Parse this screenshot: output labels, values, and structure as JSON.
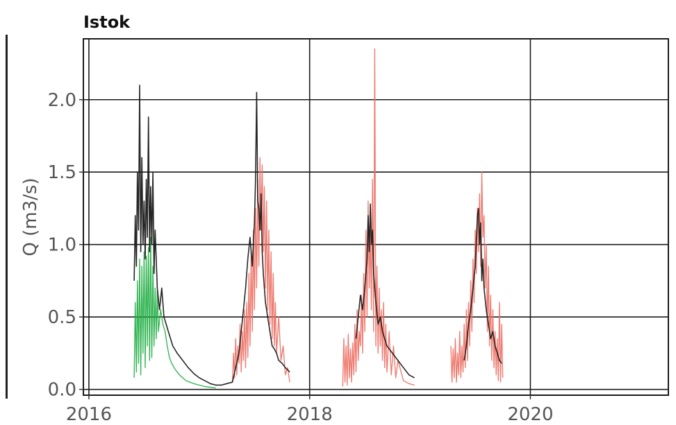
{
  "chart_data": {
    "type": "line",
    "title": "Istok",
    "xlabel": "",
    "ylabel": "Q (m3/s)",
    "xlim": [
      2015.95,
      2021.25
    ],
    "ylim": [
      -0.04,
      2.42
    ],
    "xticks": [
      2016,
      2018,
      2020
    ],
    "yticks": [
      0.0,
      0.5,
      1.0,
      1.5,
      2.0
    ],
    "ytick_labels": [
      "0.0",
      "0.5",
      "1.0",
      "1.5",
      "2.0"
    ],
    "grid": true,
    "colors": {
      "observed": "#1a1a1a",
      "green": "#1fae43",
      "red": "#ec6f63",
      "grid": "#1a1a1a",
      "frame": "#1a1a1a"
    },
    "series": [
      {
        "color_key": "green",
        "x": [
          2016.41,
          2016.42,
          2016.43,
          2016.44,
          2016.45,
          2016.46,
          2016.47,
          2016.48,
          2016.49,
          2016.5,
          2016.51,
          2016.52,
          2016.53,
          2016.54,
          2016.55,
          2016.56,
          2016.57,
          2016.58,
          2016.59,
          2016.6,
          2016.61,
          2016.62,
          2016.63,
          2016.65,
          2016.67,
          2016.69,
          2016.71,
          2016.73,
          2016.75,
          2016.78,
          2016.82,
          2016.88,
          2016.95,
          2017.05,
          2017.15
        ],
        "y": [
          0.08,
          0.6,
          0.12,
          0.75,
          0.18,
          0.9,
          0.1,
          0.85,
          0.25,
          0.95,
          0.15,
          0.92,
          0.3,
          0.98,
          0.2,
          1.05,
          0.22,
          0.85,
          0.3,
          0.7,
          0.35,
          0.68,
          0.4,
          0.55,
          0.45,
          0.4,
          0.3,
          0.22,
          0.18,
          0.14,
          0.1,
          0.06,
          0.04,
          0.02,
          0.01
        ]
      },
      {
        "color_key": "red",
        "x": [
          2017.3,
          2017.31,
          2017.32,
          2017.33,
          2017.34,
          2017.35,
          2017.36,
          2017.37,
          2017.38,
          2017.39,
          2017.4,
          2017.41,
          2017.42,
          2017.43,
          2017.44,
          2017.45,
          2017.46,
          2017.47,
          2017.48,
          2017.49,
          2017.5,
          2017.51,
          2017.52,
          2017.53,
          2017.54,
          2017.55,
          2017.56,
          2017.57,
          2017.58,
          2017.59,
          2017.6,
          2017.61,
          2017.62,
          2017.63,
          2017.64,
          2017.65,
          2017.66,
          2017.67,
          2017.68,
          2017.69,
          2017.7,
          2017.72,
          2017.74,
          2017.76,
          2017.78,
          2017.8,
          2017.82
        ],
        "y": [
          0.05,
          0.25,
          0.08,
          0.35,
          0.1,
          0.3,
          0.18,
          0.45,
          0.12,
          0.4,
          0.2,
          0.55,
          0.15,
          0.6,
          0.22,
          0.8,
          0.3,
          0.95,
          0.4,
          1.1,
          0.55,
          1.25,
          0.7,
          1.45,
          0.85,
          1.6,
          1.1,
          1.55,
          0.95,
          1.4,
          0.7,
          1.3,
          0.55,
          1.1,
          0.45,
          0.95,
          0.35,
          0.8,
          0.3,
          0.6,
          0.25,
          0.5,
          0.2,
          0.3,
          0.1,
          0.15,
          0.05
        ]
      },
      {
        "color_key": "red",
        "x": [
          2018.3,
          2018.31,
          2018.32,
          2018.33,
          2018.34,
          2018.35,
          2018.36,
          2018.37,
          2018.38,
          2018.39,
          2018.4,
          2018.41,
          2018.42,
          2018.43,
          2018.44,
          2018.45,
          2018.46,
          2018.47,
          2018.48,
          2018.49,
          2018.5,
          2018.51,
          2018.52,
          2018.53,
          2018.54,
          2018.55,
          2018.56,
          2018.57,
          2018.58,
          2018.59,
          2018.6,
          2018.61,
          2018.62,
          2018.63,
          2018.64,
          2018.65,
          2018.66,
          2018.67,
          2018.68,
          2018.69,
          2018.7,
          2018.72,
          2018.74,
          2018.76,
          2018.78,
          2018.8,
          2018.85,
          2018.9,
          2018.95
        ],
        "y": [
          0.02,
          0.35,
          0.05,
          0.3,
          0.03,
          0.38,
          0.08,
          0.28,
          0.05,
          0.32,
          0.1,
          0.45,
          0.12,
          0.55,
          0.2,
          0.4,
          0.3,
          0.65,
          0.25,
          0.8,
          0.4,
          1.1,
          0.5,
          1.3,
          0.7,
          1.1,
          0.55,
          1.45,
          0.4,
          2.35,
          0.3,
          0.85,
          0.25,
          0.7,
          0.3,
          0.55,
          0.2,
          0.6,
          0.15,
          0.45,
          0.12,
          0.4,
          0.1,
          0.3,
          0.08,
          0.2,
          0.06,
          0.04,
          0.03
        ]
      },
      {
        "color_key": "red",
        "x": [
          2019.28,
          2019.29,
          2019.3,
          2019.31,
          2019.32,
          2019.33,
          2019.34,
          2019.35,
          2019.36,
          2019.37,
          2019.38,
          2019.39,
          2019.4,
          2019.41,
          2019.42,
          2019.43,
          2019.44,
          2019.45,
          2019.46,
          2019.47,
          2019.48,
          2019.49,
          2019.5,
          2019.51,
          2019.52,
          2019.53,
          2019.54,
          2019.55,
          2019.56,
          2019.57,
          2019.58,
          2019.59,
          2019.6,
          2019.61,
          2019.62,
          2019.63,
          2019.64,
          2019.65,
          2019.66,
          2019.67,
          2019.68,
          2019.69,
          2019.7,
          2019.71,
          2019.72,
          2019.73,
          2019.74,
          2019.75
        ],
        "y": [
          0.3,
          0.05,
          0.28,
          0.08,
          0.35,
          0.05,
          0.25,
          0.1,
          0.4,
          0.08,
          0.3,
          0.12,
          0.45,
          0.15,
          0.55,
          0.2,
          0.6,
          0.3,
          0.75,
          0.4,
          0.9,
          0.6,
          1.1,
          0.8,
          1.25,
          0.95,
          1.35,
          0.85,
          1.5,
          1.05,
          1.2,
          0.7,
          1.0,
          0.4,
          0.85,
          0.3,
          0.65,
          0.2,
          0.55,
          0.15,
          0.4,
          0.1,
          0.35,
          0.06,
          0.6,
          0.05,
          0.45,
          0.08
        ]
      },
      {
        "color_key": "observed",
        "x": [
          2016.41,
          2016.42,
          2016.43,
          2016.44,
          2016.45,
          2016.46,
          2016.47,
          2016.48,
          2016.49,
          2016.5,
          2016.51,
          2016.52,
          2016.53,
          2016.54,
          2016.55,
          2016.56,
          2016.57,
          2016.58,
          2016.59,
          2016.6,
          2016.62,
          2016.64,
          2016.66,
          2016.68,
          2016.7,
          2016.72,
          2016.74,
          2016.76,
          2016.8,
          2016.85,
          2016.9,
          2016.95,
          2017.0,
          2017.05,
          2017.1,
          2017.15,
          2017.2,
          2017.25,
          2017.3,
          2017.33,
          2017.36,
          2017.38,
          2017.4,
          2017.42,
          2017.44,
          2017.46,
          2017.48,
          2017.5,
          2017.51,
          2017.52,
          2017.53,
          2017.54,
          2017.55,
          2017.56,
          2017.57,
          2017.58,
          2017.6,
          2017.62,
          2017.64,
          2017.66,
          2017.68,
          2017.7,
          2017.72,
          2017.75,
          2017.78,
          2017.82
        ],
        "y": [
          0.75,
          1.2,
          0.85,
          1.5,
          1.1,
          2.1,
          0.95,
          1.6,
          1.0,
          1.3,
          0.9,
          1.45,
          1.05,
          1.88,
          0.95,
          1.4,
          1.0,
          1.5,
          0.8,
          1.1,
          0.7,
          0.55,
          0.7,
          0.5,
          0.45,
          0.4,
          0.35,
          0.3,
          0.25,
          0.2,
          0.15,
          0.11,
          0.08,
          0.06,
          0.04,
          0.03,
          0.03,
          0.04,
          0.05,
          0.15,
          0.25,
          0.4,
          0.55,
          0.7,
          0.9,
          1.05,
          0.85,
          1.15,
          1.45,
          2.05,
          1.3,
          1.25,
          1.1,
          1.35,
          0.95,
          0.8,
          0.6,
          0.5,
          0.4,
          0.3,
          0.28,
          0.25,
          0.2,
          0.18,
          0.15,
          0.12
        ]
      },
      {
        "color_key": "observed",
        "x": [
          2018.42,
          2018.44,
          2018.46,
          2018.48,
          2018.5,
          2018.52,
          2018.53,
          2018.54,
          2018.55,
          2018.56,
          2018.57,
          2018.58,
          2018.6,
          2018.62,
          2018.64,
          2018.66,
          2018.68,
          2018.7,
          2018.72,
          2018.75,
          2018.8,
          2018.85,
          2018.9,
          2018.95
        ],
        "y": [
          0.35,
          0.5,
          0.65,
          0.55,
          0.7,
          0.9,
          1.2,
          0.95,
          1.28,
          1.0,
          1.1,
          0.8,
          0.6,
          0.45,
          0.5,
          0.4,
          0.35,
          0.3,
          0.28,
          0.25,
          0.2,
          0.15,
          0.1,
          0.08
        ]
      },
      {
        "color_key": "observed",
        "x": [
          2019.4,
          2019.42,
          2019.44,
          2019.46,
          2019.48,
          2019.5,
          2019.52,
          2019.53,
          2019.54,
          2019.55,
          2019.56,
          2019.57,
          2019.58,
          2019.6,
          2019.62,
          2019.64,
          2019.66,
          2019.68,
          2019.7,
          2019.72,
          2019.74
        ],
        "y": [
          0.2,
          0.3,
          0.45,
          0.55,
          0.7,
          0.85,
          1.2,
          1.25,
          1.0,
          1.15,
          0.75,
          0.9,
          0.7,
          0.55,
          0.45,
          0.35,
          0.4,
          0.3,
          0.25,
          0.2,
          0.18
        ]
      }
    ]
  }
}
